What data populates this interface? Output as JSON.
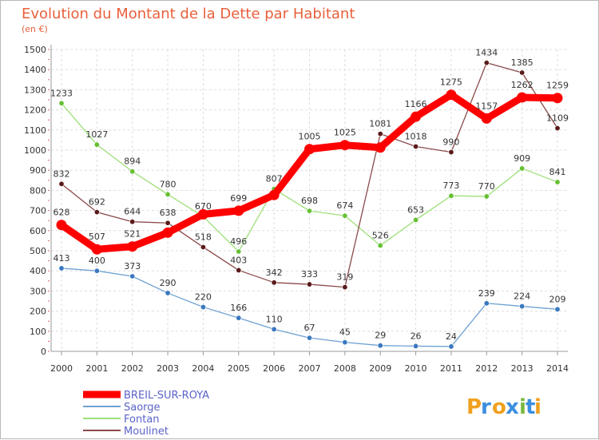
{
  "title": "Evolution du Montant de la Dette par Habitant",
  "subtitle": "(en €)",
  "logo": {
    "text": "Proxiti",
    "letters": [
      "P",
      "r",
      "o",
      "x",
      "i",
      "t",
      "i"
    ],
    "colors": [
      "#f0a020",
      "#3a8ede",
      "#f0a020",
      "#3a8ede",
      "#7ab840",
      "#3a8ede",
      "#f0a020"
    ]
  },
  "chart_data": {
    "type": "line",
    "title": "Evolution du Montant de la Dette par Habitant",
    "subtitle": "(en €)",
    "x": [
      "2000",
      "2001",
      "2002",
      "2003",
      "2004",
      "2005",
      "2006",
      "2007",
      "2008",
      "2009",
      "2010",
      "2011",
      "2012",
      "2013",
      "2014"
    ],
    "ylim": [
      0,
      1500
    ],
    "yticks": [
      0,
      100,
      200,
      300,
      400,
      500,
      600,
      700,
      800,
      900,
      1000,
      1100,
      1200,
      1300,
      1400,
      1500
    ],
    "grid": true,
    "legend_position": "bottom-left",
    "series": [
      {
        "name": "BREIL-SUR-ROYA",
        "color": "#ff0000",
        "marker": "#ff0000",
        "values": [
          628,
          507,
          521,
          590,
          681,
          699,
          777,
          1005,
          1025,
          1013,
          1166,
          1275,
          1157,
          1262,
          1259
        ],
        "labels": [
          "628",
          "507",
          "521",
          "",
          "",
          "699",
          "",
          "1005",
          "1025",
          "",
          "1166",
          "1275",
          "1157",
          "1262",
          "1259"
        ]
      },
      {
        "name": "Saorge",
        "color": "#6fa1d2",
        "marker": "#3a78c0",
        "values": [
          413,
          400,
          373,
          290,
          220,
          166,
          110,
          67,
          45,
          29,
          26,
          24,
          239,
          224,
          209
        ],
        "labels": [
          "413",
          "400",
          "373",
          "290",
          "220",
          "166",
          "110",
          "67",
          "45",
          "29",
          "26",
          "24",
          "239",
          "224",
          "209"
        ]
      },
      {
        "name": "Fontan",
        "color": "#9ee07a",
        "marker": "#66c033",
        "values": [
          1233,
          1027,
          894,
          780,
          670,
          496,
          807,
          698,
          674,
          526,
          653,
          773,
          770,
          909,
          841
        ],
        "labels": [
          "1233",
          "1027",
          "894",
          "780",
          "670",
          "496",
          "807",
          "698",
          "674",
          "526",
          "653",
          "773",
          "770",
          "909",
          "841"
        ]
      },
      {
        "name": "Moulinet",
        "color": "#8b4a4a",
        "marker": "#5a1a1a",
        "values": [
          832,
          692,
          644,
          638,
          518,
          403,
          342,
          333,
          319,
          1081,
          1018,
          990,
          1434,
          1385,
          1109
        ],
        "labels": [
          "832",
          "692",
          "644",
          "638",
          "518",
          "403",
          "342",
          "333",
          "319",
          "1081",
          "1018",
          "990",
          "1434",
          "1385",
          "1109"
        ]
      }
    ]
  }
}
